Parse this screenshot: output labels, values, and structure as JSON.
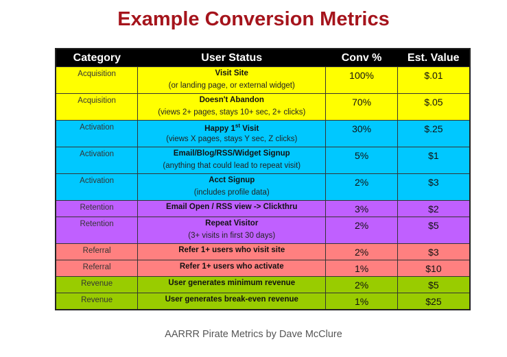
{
  "title": "Example Conversion Metrics",
  "caption": "AARRR Pirate Metrics by Dave McClure",
  "headers": [
    "Category",
    "User Status",
    "Conv %",
    "Est. Value"
  ],
  "colors": {
    "Acquisition": "#ffff00",
    "Activation": "#00c8ff",
    "Retention": "#c060ff",
    "Referral": "#ff8080",
    "Revenue": "#99cc00"
  },
  "rows": [
    {
      "category": "Acquisition",
      "status": "Visit Site",
      "detail": "(or landing page, or external widget)",
      "conv": "100%",
      "value": "$.01"
    },
    {
      "category": "Acquisition",
      "status": "Doesn't Abandon",
      "detail": "(views 2+ pages, stays 10+ sec, 2+ clicks)",
      "conv": "70%",
      "value": "$.05"
    },
    {
      "category": "Activation",
      "status": "Happy 1",
      "status_sup": "st",
      "status_post": " Visit",
      "detail": "(views X pages, stays Y sec, Z clicks)",
      "conv": "30%",
      "value": "$.25"
    },
    {
      "category": "Activation",
      "status": "Email/Blog/RSS/Widget Signup",
      "detail": "(anything that could lead to repeat visit)",
      "conv": "5%",
      "value": "$1"
    },
    {
      "category": "Activation",
      "status": "Acct Signup",
      "detail": "(includes profile data)",
      "conv": "2%",
      "value": "$3"
    },
    {
      "category": "Retention",
      "status": "Email Open / RSS view -> Clickthru",
      "detail": "",
      "conv": "3%",
      "value": "$2"
    },
    {
      "category": "Retention",
      "status": "Repeat Visitor",
      "detail": "(3+ visits in first 30 days)",
      "conv": "2%",
      "value": "$5"
    },
    {
      "category": "Referral",
      "status": "Refer 1+ users who visit site",
      "detail": "",
      "conv": "2%",
      "value": "$3"
    },
    {
      "category": "Referral",
      "status": "Refer 1+ users who activate",
      "detail": "",
      "conv": "1%",
      "value": "$10"
    },
    {
      "category": "Revenue",
      "status": "User generates minimum revenue",
      "detail": "",
      "conv": "2%",
      "value": "$5"
    },
    {
      "category": "Revenue",
      "status": "User generates break-even revenue",
      "detail": "",
      "conv": "1%",
      "value": "$25"
    }
  ]
}
